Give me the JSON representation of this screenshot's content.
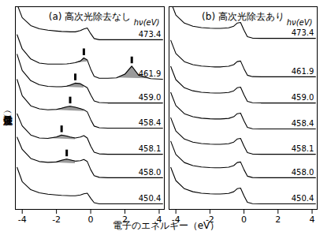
{
  "chart_data": {
    "type": "line",
    "x_label": "電子のエネルギー（eV）",
    "y_label": "強度（任意目盛）",
    "label_header": "hν(eV)",
    "tick_labels": "x",
    "x": [
      -4.3,
      -4.0,
      -3.5,
      -3.0,
      -2.5,
      -2.0,
      -1.7,
      -1.4,
      -1.2,
      -0.9,
      -0.6,
      -0.4,
      -0.2,
      0.0,
      0.2,
      0.5,
      1.0,
      1.5,
      2.0,
      2.4,
      2.8,
      3.5,
      4.2
    ],
    "xlim": [
      -4.4,
      4.3
    ],
    "xticks": [
      -4,
      -2,
      0,
      2,
      4
    ],
    "ylim": [
      0,
      100
    ],
    "panels": [
      {
        "title": "(a) 高次光除去なし",
        "series": [
          {
            "name": "473.4",
            "color": "#000000",
            "values": [
              101.2,
              94.6,
              90.7,
              89.1,
              88.4,
              88.0,
              87.8,
              87.7,
              87.6,
              87.6,
              88.2,
              89.0,
              89.5,
              86.7,
              84.3,
              83.7,
              83.7,
              83.7,
              83.7,
              83.7,
              83.7,
              83.7,
              83.7
            ]
          },
          {
            "name": "461.9",
            "color": "#000000",
            "values": [
              86.2,
              79.2,
              74.2,
              72.2,
              71.7,
              71.7,
              71.7,
              71.8,
              72.0,
              72.4,
              73.2,
              74.7,
              73.7,
              69.2,
              65.7,
              64.7,
              64.7,
              64.9,
              66.7,
              70.7,
              66.2,
              64.5,
              64.2
            ],
            "shade_base": [
              null,
              null,
              null,
              null,
              null,
              null,
              null,
              null,
              null,
              72.4,
              72.5,
              72.7,
              72.8,
              null,
              null,
              null,
              null,
              64.9,
              64.8,
              64.7,
              64.6,
              64.5,
              null
            ],
            "peak_marks": [
              -0.4,
              2.4
            ]
          },
          {
            "name": "459.0",
            "color": "#000000",
            "values": [
              76.5,
              68.5,
              63.5,
              61.5,
              60.7,
              60.5,
              60.5,
              60.8,
              61.3,
              62.3,
              62.0,
              61.0,
              60.0,
              56.5,
              53.5,
              52.7,
              52.5,
              52.5,
              52.5,
              52.5,
              52.5,
              52.5,
              52.5
            ],
            "shade_base": [
              null,
              null,
              null,
              null,
              null,
              60.5,
              60.4,
              60.3,
              60.2,
              60.1,
              60.0,
              59.9,
              null,
              null,
              null,
              null,
              null,
              null,
              null,
              null,
              null,
              null,
              null
            ],
            "peak_marks": [
              -0.9
            ]
          },
          {
            "name": "458.4",
            "color": "#000000",
            "values": [
              64.1,
              56.1,
              51.1,
              49.6,
              49.1,
              49.3,
              49.9,
              50.6,
              50.9,
              50.4,
              49.7,
              49.1,
              48.1,
              44.3,
              41.1,
              40.3,
              40.1,
              40.1,
              40.1,
              40.1,
              40.1,
              40.1,
              40.1
            ],
            "shade_base": [
              null,
              null,
              null,
              null,
              49.1,
              48.9,
              48.8,
              48.7,
              48.6,
              48.5,
              48.4,
              48.3,
              null,
              null,
              null,
              null,
              null,
              null,
              null,
              null,
              null,
              null,
              null
            ],
            "peak_marks": [
              -1.2
            ]
          },
          {
            "name": "458.1",
            "color": "#000000",
            "values": [
              47.2,
              41.2,
              36.7,
              35.2,
              35.0,
              35.7,
              36.7,
              36.2,
              35.7,
              35.2,
              35.7,
              36.4,
              35.2,
              31.2,
              28.2,
              27.4,
              27.2,
              27.2,
              27.2,
              27.2,
              27.2,
              27.2,
              27.2
            ],
            "shade_base": [
              null,
              null,
              null,
              null,
              35.0,
              34.8,
              34.7,
              34.6,
              34.5,
              34.4,
              null,
              null,
              null,
              null,
              null,
              null,
              null,
              null,
              null,
              null,
              null,
              null,
              null
            ],
            "peak_marks": [
              -1.7
            ]
          },
          {
            "name": "458.0",
            "color": "#000000",
            "values": [
              35.6,
              29.6,
              25.1,
              23.6,
              23.2,
              23.4,
              24.2,
              24.8,
              24.4,
              23.8,
              24.0,
              24.6,
              23.6,
              19.6,
              16.6,
              15.8,
              15.6,
              15.6,
              15.6,
              15.6,
              15.6,
              15.6,
              15.6
            ],
            "shade_base": [
              null,
              null,
              null,
              null,
              23.2,
              23.0,
              22.9,
              22.8,
              22.7,
              22.6,
              null,
              null,
              null,
              null,
              null,
              null,
              null,
              null,
              null,
              null,
              null,
              null,
              null
            ],
            "peak_marks": [
              -1.4
            ]
          },
          {
            "name": "450.4",
            "color": "#000000",
            "values": [
              20.7,
              13.7,
              9.7,
              8.2,
              7.5,
              7.1,
              6.9,
              6.8,
              6.7,
              6.7,
              7.1,
              7.7,
              8.0,
              5.5,
              3.3,
              2.7,
              2.7,
              2.7,
              2.7,
              2.7,
              2.7,
              2.7,
              2.7
            ]
          }
        ]
      },
      {
        "title": "(b) 高次光除去あり",
        "series": [
          {
            "name": "473.4",
            "color": "#000000",
            "values": [
              102.4,
              95.9,
              91.9,
              90.4,
              89.7,
              89.4,
              89.3,
              89.3,
              89.4,
              89.6,
              90.4,
              91.9,
              92.2,
              88.4,
              85.2,
              84.5,
              84.4,
              84.4,
              84.4,
              84.4,
              84.4,
              84.4,
              84.4
            ]
          },
          {
            "name": "461.9",
            "color": "#000000",
            "values": [
              83.4,
              76.9,
              72.9,
              71.4,
              70.7,
              70.4,
              70.3,
              70.3,
              70.4,
              70.6,
              71.4,
              72.9,
              73.2,
              69.4,
              66.2,
              65.5,
              65.4,
              65.4,
              65.4,
              65.4,
              65.4,
              65.4,
              65.4
            ]
          },
          {
            "name": "459.0",
            "color": "#000000",
            "values": [
              70.5,
              64.0,
              60.0,
              58.5,
              57.8,
              57.5,
              57.4,
              57.4,
              57.5,
              57.7,
              58.5,
              60.0,
              60.3,
              56.5,
              53.3,
              52.6,
              52.5,
              52.5,
              52.5,
              52.5,
              52.5,
              52.5,
              52.5
            ]
          },
          {
            "name": "458.4",
            "color": "#000000",
            "values": [
              57.7,
              51.2,
              47.2,
              45.7,
              45.0,
              44.7,
              44.6,
              44.6,
              44.7,
              44.9,
              45.7,
              47.2,
              47.5,
              43.7,
              40.5,
              39.8,
              39.7,
              39.7,
              39.7,
              39.7,
              39.7,
              39.7,
              39.7
            ]
          },
          {
            "name": "458.1",
            "color": "#000000",
            "values": [
              45.2,
              38.7,
              34.7,
              33.2,
              32.5,
              32.2,
              32.1,
              32.1,
              32.2,
              32.4,
              33.2,
              34.7,
              35.0,
              31.2,
              28.0,
              27.3,
              27.2,
              27.2,
              27.2,
              27.2,
              27.2,
              27.2,
              27.2
            ]
          },
          {
            "name": "458.0",
            "color": "#000000",
            "values": [
              33.6,
              27.1,
              23.1,
              21.6,
              20.9,
              20.6,
              20.5,
              20.5,
              20.6,
              20.8,
              21.6,
              23.1,
              23.4,
              19.6,
              16.4,
              15.7,
              15.6,
              15.6,
              15.6,
              15.6,
              15.6,
              15.6,
              15.6
            ]
          },
          {
            "name": "450.4",
            "color": "#000000",
            "values": [
              20.7,
              14.2,
              10.2,
              8.7,
              8.0,
              7.7,
              7.6,
              7.6,
              7.7,
              7.9,
              8.7,
              10.2,
              10.5,
              6.7,
              3.5,
              2.8,
              2.7,
              2.7,
              2.7,
              2.7,
              2.7,
              2.7,
              2.7
            ]
          }
        ]
      }
    ]
  }
}
